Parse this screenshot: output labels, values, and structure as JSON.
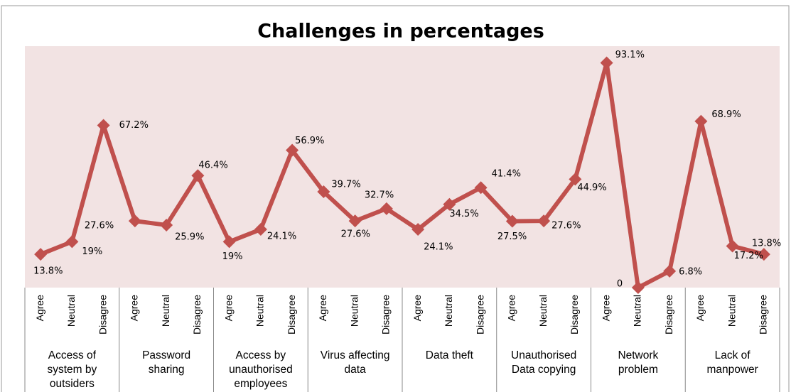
{
  "chart_data": {
    "type": "line",
    "title": "Challenges in percentages",
    "categories": [
      "Agree",
      "Neutral",
      "Disagree",
      "Agree",
      "Neutral",
      "Disagree",
      "Agree",
      "Neutral",
      "Disagree",
      "Agree",
      "Neutral",
      "Disagree",
      "Agree",
      "Neutral",
      "Disagree",
      "Agree",
      "Neutral",
      "Disagree",
      "Agree",
      "Neutral",
      "Disagree",
      "Agree",
      "Neutral",
      "Disagree"
    ],
    "groups": [
      [
        "Access of",
        "system by",
        "outsiders"
      ],
      [
        "Password",
        "sharing"
      ],
      [
        "Access by",
        "unauthorised",
        "employees"
      ],
      [
        "Virus affecting",
        "data"
      ],
      [
        "Data theft"
      ],
      [
        "Unauthorised",
        "Data copying"
      ],
      [
        "Network",
        "problem"
      ],
      [
        "Lack of",
        "manpower"
      ]
    ],
    "values": [
      13.8,
      19,
      67.2,
      27.6,
      25.9,
      46.4,
      19,
      24.1,
      56.9,
      39.7,
      27.6,
      32.7,
      24.1,
      34.5,
      41.4,
      27.5,
      27.6,
      44.9,
      93.1,
      0,
      6.8,
      68.9,
      17.2,
      13.8
    ],
    "value_labels": [
      "13.8%",
      "19%",
      "67.2%",
      "27.6%",
      "25.9%",
      "46.4%",
      "19%",
      "24.1%",
      "56.9%",
      "39.7%",
      "27.6%",
      "32.7%",
      "24.1%",
      "34.5%",
      "41.4%",
      "27.5%",
      "27.6%",
      "44.9%",
      "93.1%",
      "0",
      "6.8%",
      "68.9%",
      "17.2%",
      "13.8%"
    ],
    "color": "#c0504d",
    "ylim": [
      0,
      100
    ]
  }
}
